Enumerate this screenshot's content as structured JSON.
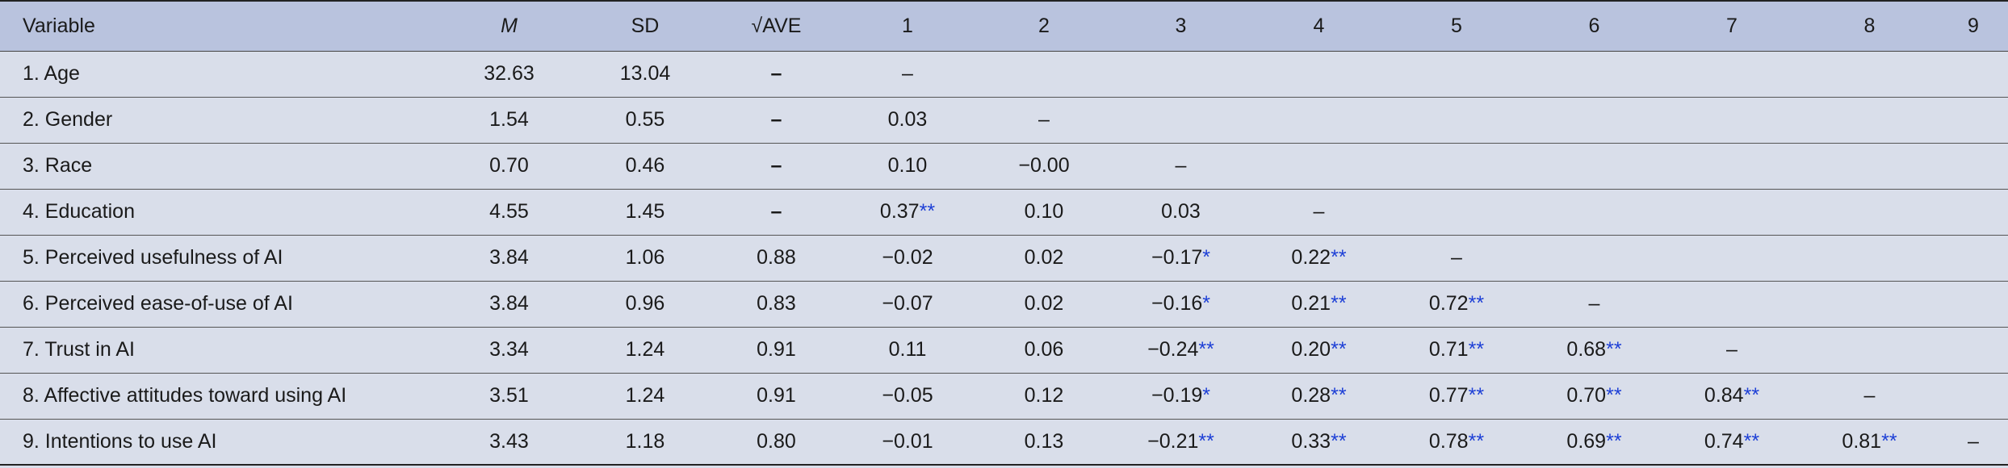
{
  "table": {
    "header": [
      "Variable",
      "M",
      "SD",
      "√AVE",
      "1",
      "2",
      "3",
      "4",
      "5",
      "6",
      "7",
      "8",
      "9"
    ],
    "rows": [
      [
        "1. Age",
        "32.63",
        "13.04",
        "–",
        "–"
      ],
      [
        "2. Gender",
        "1.54",
        "0.55",
        "–",
        "0.03",
        "–"
      ],
      [
        "3. Race",
        "0.70",
        "0.46",
        "–",
        "0.10",
        "−0.00",
        "–"
      ],
      [
        "4. Education",
        "4.55",
        "1.45",
        "–",
        "0.37**",
        "0.10",
        "0.03",
        "–"
      ],
      [
        "5. Perceived usefulness of AI",
        "3.84",
        "1.06",
        "0.88",
        "−0.02",
        "0.02",
        "−0.17*",
        "0.22**",
        "–"
      ],
      [
        "6. Perceived ease-of-use of AI",
        "3.84",
        "0.96",
        "0.83",
        "−0.07",
        "0.02",
        "−0.16*",
        "0.21**",
        "0.72**",
        "–"
      ],
      [
        "7. Trust in AI",
        "3.34",
        "1.24",
        "0.91",
        "0.11",
        "0.06",
        "−0.24**",
        "0.20**",
        "0.71**",
        "0.68**",
        "–"
      ],
      [
        "8. Affective attitudes toward using AI",
        "3.51",
        "1.24",
        "0.91",
        "−0.05",
        "0.12",
        "−0.19*",
        "0.28**",
        "0.77**",
        "0.70**",
        "0.84**",
        "–"
      ],
      [
        "9. Intentions to use AI",
        "3.43",
        "1.18",
        "0.80",
        "−0.01",
        "0.13",
        "−0.21**",
        "0.33**",
        "0.78**",
        "0.69**",
        "0.74**",
        "0.81**",
        "–"
      ]
    ]
  }
}
